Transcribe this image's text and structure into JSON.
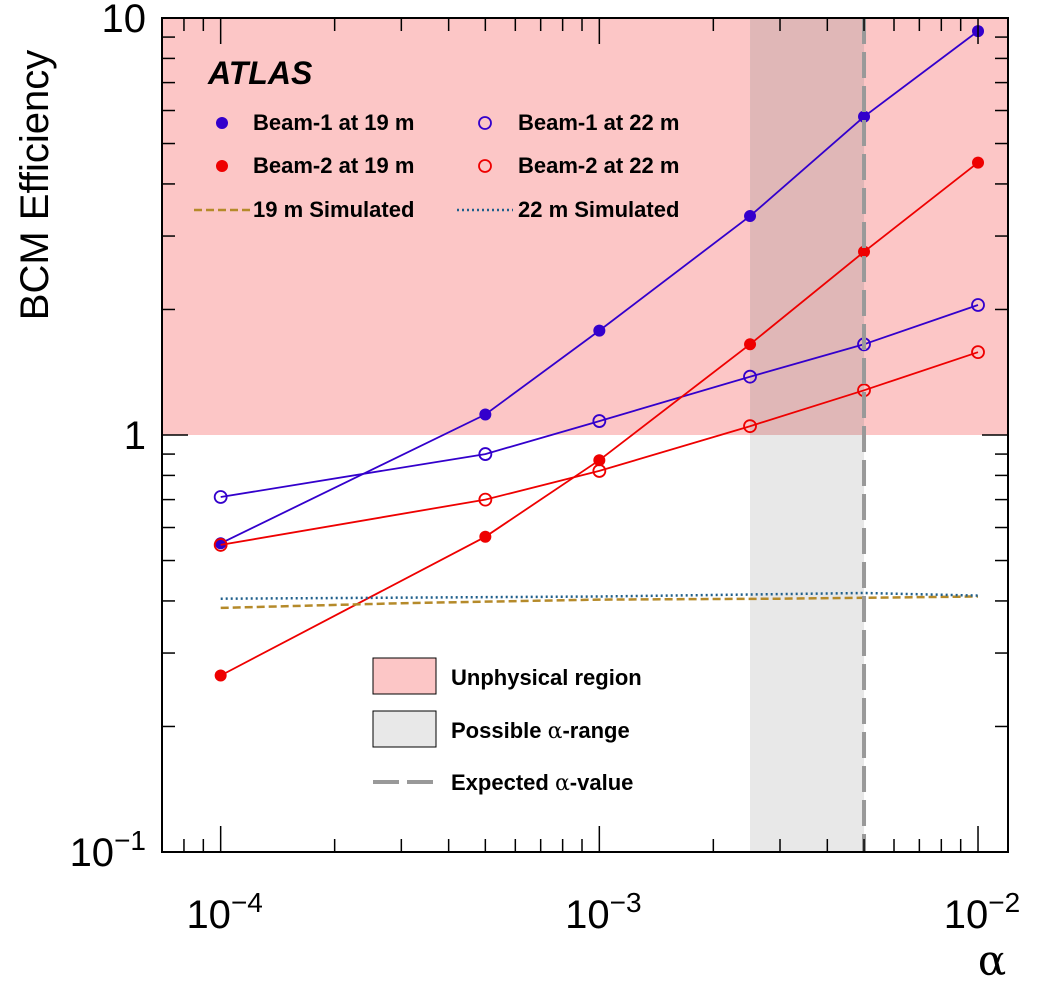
{
  "chart_data": {
    "type": "line",
    "xlabel": "α",
    "ylabel": "BCM Efficiency",
    "xscale": "log",
    "yscale": "log",
    "xlim": [
      7e-05,
      0.012
    ],
    "ylim": [
      0.1,
      10
    ],
    "x_ticks": [
      {
        "value": 0.0001,
        "base": "10",
        "exp": "−4"
      },
      {
        "value": 0.001,
        "base": "10",
        "exp": "−3"
      },
      {
        "value": 0.01,
        "base": "10",
        "exp": "−2"
      }
    ],
    "y_ticks": [
      {
        "value": 0.1,
        "base": "10",
        "exp": "−1"
      },
      {
        "value": 1,
        "base": "1",
        "exp": ""
      },
      {
        "value": 10,
        "base": "10",
        "exp": ""
      }
    ],
    "brand": "ATLAS",
    "regions": {
      "unphysical": {
        "label": "Unphysical region",
        "y_min": 1,
        "color": "#fcc6c6"
      },
      "alpha_range": {
        "label_pre": "Possible ",
        "label_greek": "α",
        "label_post": "-range",
        "x_min": 0.0025,
        "x_max": 0.005,
        "color": "#e8e8e8"
      },
      "expected": {
        "label_pre": "Expected ",
        "label_greek": "α",
        "label_post": "-value",
        "x": 0.005,
        "color": "#999999"
      }
    },
    "series": [
      {
        "name": "Beam-1 at 19 m",
        "color": "#3300cc",
        "marker": "filled",
        "x": [
          0.0001,
          0.0005,
          0.001,
          0.0025,
          0.005,
          0.01
        ],
        "values": [
          0.55,
          1.12,
          1.78,
          3.35,
          5.8,
          9.3
        ]
      },
      {
        "name": "Beam-1 at 22 m",
        "color": "#3300cc",
        "marker": "open",
        "x": [
          0.0001,
          0.0005,
          0.001,
          0.0025,
          0.005,
          0.01
        ],
        "values": [
          0.71,
          0.9,
          1.08,
          1.38,
          1.65,
          2.05
        ]
      },
      {
        "name": "Beam-2 at 19 m",
        "color": "#ee0000",
        "marker": "filled",
        "x": [
          0.0001,
          0.0005,
          0.001,
          0.0025,
          0.005,
          0.01
        ],
        "values": [
          0.265,
          0.57,
          0.87,
          1.65,
          2.75,
          4.5
        ]
      },
      {
        "name": "Beam-2 at 22 m",
        "color": "#ee0000",
        "marker": "open",
        "x": [
          0.0001,
          0.0005,
          0.001,
          0.0025,
          0.005,
          0.01
        ],
        "values": [
          0.545,
          0.7,
          0.82,
          1.05,
          1.28,
          1.58
        ]
      },
      {
        "name": "19 m Simulated",
        "color": "#b58a2a",
        "style": "dashed",
        "x": [
          0.0001,
          0.0003,
          0.001,
          0.003,
          0.01
        ],
        "values": [
          0.385,
          0.395,
          0.403,
          0.405,
          0.41
        ]
      },
      {
        "name": "22 m Simulated",
        "color": "#1f5f8b",
        "style": "dotted",
        "x": [
          0.0001,
          0.001,
          0.005,
          0.01
        ],
        "values": [
          0.405,
          0.41,
          0.418,
          0.412
        ]
      }
    ]
  }
}
